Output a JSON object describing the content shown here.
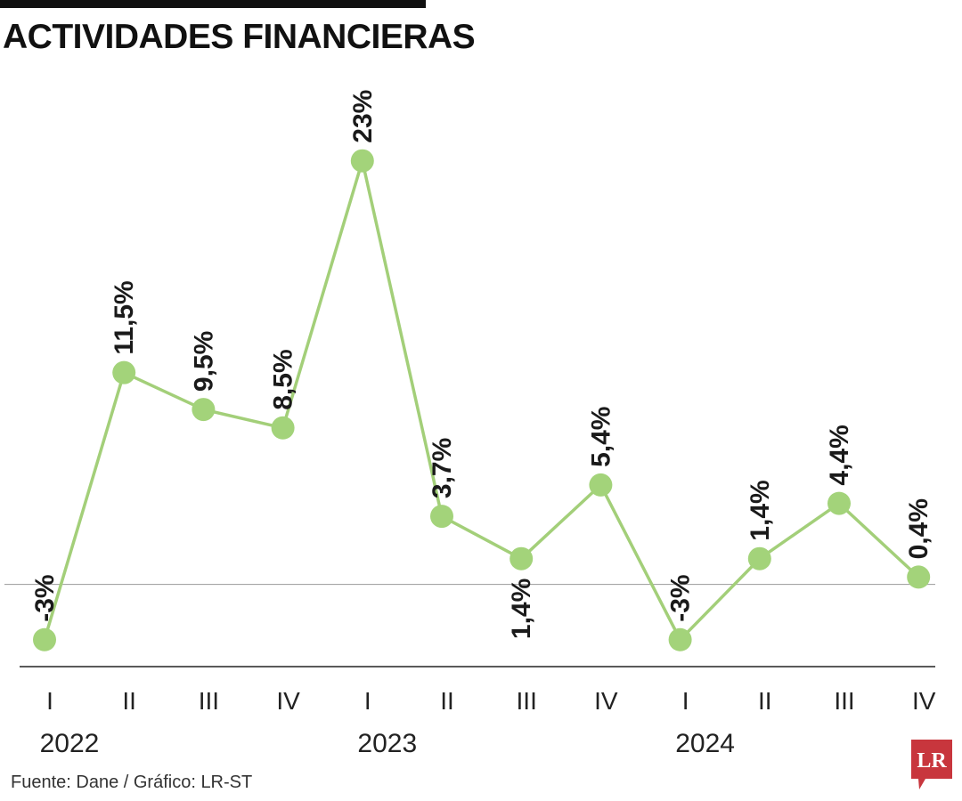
{
  "header": {
    "title": "ACTIVIDADES FINANCIERAS"
  },
  "footer": {
    "source": "Fuente: Dane / Gráfico: LR-ST",
    "logo_text": "LR"
  },
  "colors": {
    "line": "#a3cf79",
    "marker": "#a3d37a",
    "axis": "#222222",
    "zero_line": "#9a9a9a",
    "logo": "#c8363d"
  },
  "chart_data": {
    "type": "line",
    "title": "ACTIVIDADES FINANCIERAS",
    "categories": [
      "I",
      "II",
      "III",
      "IV",
      "I",
      "II",
      "III",
      "IV",
      "I",
      "II",
      "III",
      "IV"
    ],
    "years": [
      {
        "label": "2022",
        "start": 0
      },
      {
        "label": "2023",
        "start": 4
      },
      {
        "label": "2024",
        "start": 8
      }
    ],
    "series": [
      {
        "values": [
          -3,
          11.5,
          9.5,
          8.5,
          23,
          3.7,
          1.4,
          5.4,
          -3,
          1.4,
          4.4,
          0.4
        ],
        "labels": [
          "-3%",
          "11,5%",
          "9,5%",
          "8,5%",
          "23%",
          "3,7%",
          "1,4%",
          "5,4%",
          "-3%",
          "1,4%",
          "4,4%",
          "0,4%"
        ],
        "label_position": [
          "above",
          "above",
          "above",
          "above",
          "above",
          "above",
          "below",
          "above",
          "above",
          "above",
          "above",
          "above"
        ]
      }
    ],
    "ylim": [
      -4.8,
      24
    ],
    "xlabel": "",
    "ylabel": "",
    "grid": false,
    "legend": "none"
  }
}
